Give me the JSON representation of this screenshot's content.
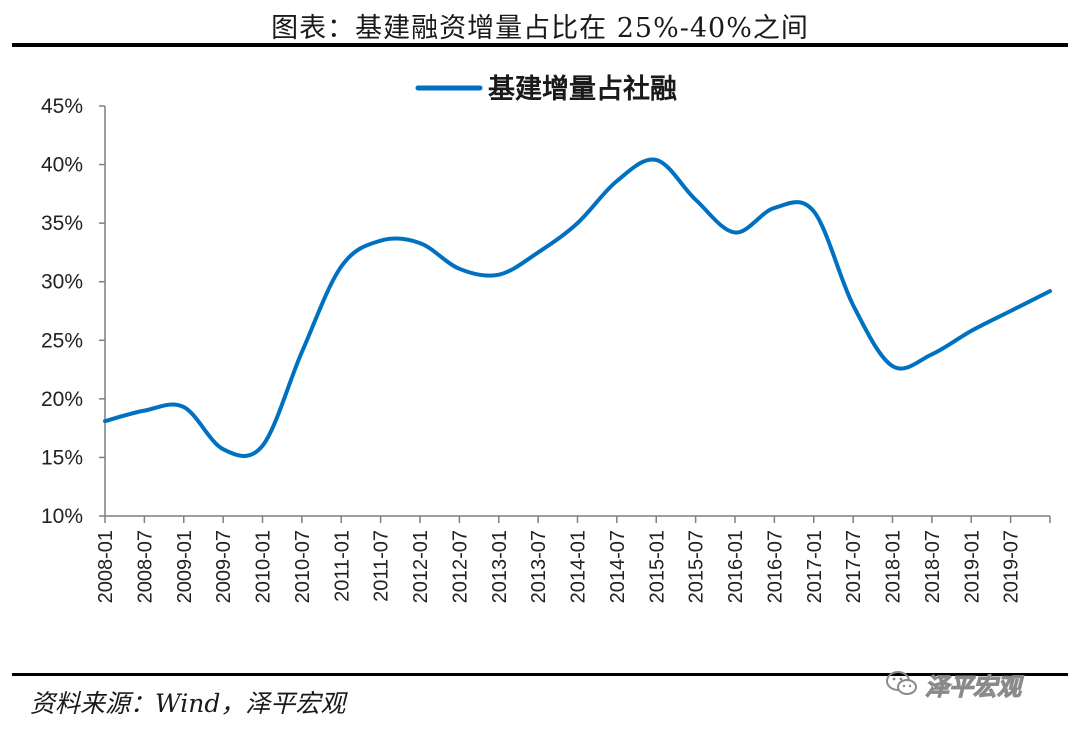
{
  "header": {
    "title": "图表：基建融资增量占比在 25%-40%之间"
  },
  "footer": {
    "source": "资料来源：Wind，泽平宏观",
    "watermark": "泽平宏观"
  },
  "colors": {
    "series": "#0070C0",
    "axis": "#7f7f7f",
    "rule": "#000000"
  },
  "chart_data": {
    "type": "line",
    "title": "",
    "legend_position": "top-center",
    "grid": false,
    "ylim": [
      0.1,
      0.45
    ],
    "yticks": [
      "10%",
      "15%",
      "20%",
      "25%",
      "30%",
      "35%",
      "40%",
      "45%"
    ],
    "categories": [
      "2008-01",
      "2008-07",
      "2009-01",
      "2009-07",
      "2010-01",
      "2010-07",
      "2011-01",
      "2011-07",
      "2012-01",
      "2012-07",
      "2013-01",
      "2013-07",
      "2014-01",
      "2014-07",
      "2015-01",
      "2015-07",
      "2016-01",
      "2016-07",
      "2017-01",
      "2017-07",
      "2018-01",
      "2018-07",
      "2019-01",
      "2019-07"
    ],
    "x": [
      "2008",
      "2008.5",
      "2009",
      "2009.5",
      "2010",
      "2010.5",
      "2011",
      "2011.5",
      "2012",
      "2012.5",
      "2013",
      "2013.5",
      "2014",
      "2014.5",
      "2015",
      "2015.5",
      "2016",
      "2016.5",
      "2017",
      "2017.5",
      "2018",
      "2018.5",
      "2019",
      "2019.5",
      "2020"
    ],
    "series": [
      {
        "name": "基建增量占社融",
        "values": [
          0.181,
          0.19,
          0.193,
          0.157,
          0.16,
          0.24,
          0.313,
          0.335,
          0.333,
          0.311,
          0.306,
          0.325,
          0.35,
          0.386,
          0.404,
          0.37,
          0.342,
          0.363,
          0.36,
          0.28,
          0.228,
          0.238,
          0.258,
          0.275,
          0.292
        ]
      }
    ]
  }
}
